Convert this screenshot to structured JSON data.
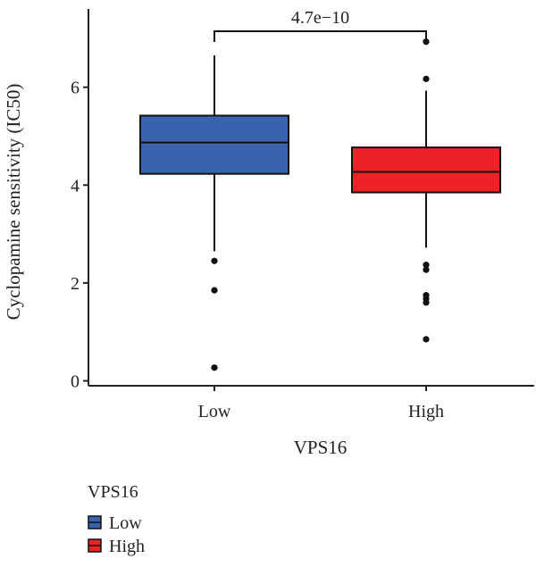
{
  "chart_data": {
    "type": "box",
    "title": "",
    "xlabel": "VPS16",
    "ylabel": "Cyclopamine sensitivity (IC50)",
    "ylim": [
      -0.1,
      7.6
    ],
    "yticks": [
      0,
      2,
      4,
      6
    ],
    "grid": false,
    "categories": [
      "Low",
      "High"
    ],
    "series": [
      {
        "name": "Low",
        "color": "#3a63ad",
        "q1": 4.23,
        "median": 4.87,
        "q3": 5.42,
        "whisker_low": 2.65,
        "whisker_high": 6.65,
        "outliers": [
          2.45,
          1.85,
          0.27
        ]
      },
      {
        "name": "High",
        "color": "#ec2227",
        "q1": 3.85,
        "median": 4.27,
        "q3": 4.77,
        "whisker_low": 2.72,
        "whisker_high": 5.93,
        "outliers": [
          6.93,
          6.17,
          2.37,
          2.27,
          1.75,
          1.68,
          1.6,
          0.85
        ]
      }
    ],
    "annotation": {
      "text": "4.7e−10",
      "between": [
        "Low",
        "High"
      ]
    },
    "legend": {
      "title": "VPS16",
      "position": "bottom-left",
      "entries": [
        "Low",
        "High"
      ]
    }
  }
}
